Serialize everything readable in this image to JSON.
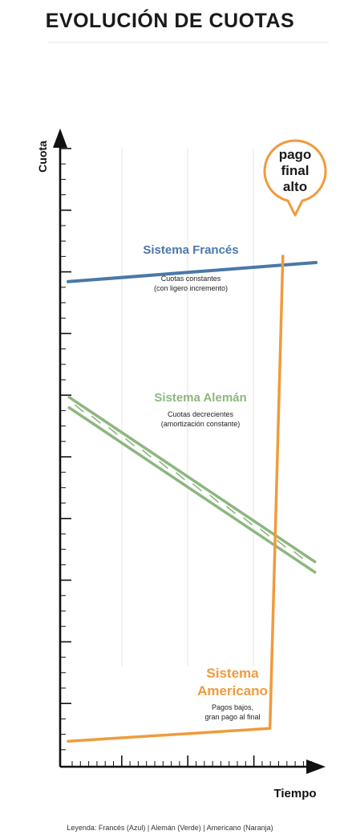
{
  "title": "EVOLUCIÓN DE CUOTAS",
  "legend_text": "Leyenda: Francés (Azul) | Alemán (Verde) | Americano (Naranja)",
  "colors": {
    "frances": "#4a78a8",
    "aleman": "#8db67f",
    "americano": "#ef9b3c",
    "axis": "#111111",
    "grid": "#e4e4e4"
  },
  "chart_data": {
    "type": "line",
    "xlabel": "Tiempo",
    "ylabel": "Cuota",
    "xlim": [
      0,
      10
    ],
    "ylim": [
      0,
      100
    ],
    "grid": true,
    "series": [
      {
        "name": "Sistema Francés",
        "color": "#4a78a8",
        "description": [
          "Cuotas constantes",
          "(con ligero incremento)"
        ],
        "points": [
          [
            0,
            76
          ],
          [
            10,
            79
          ]
        ]
      },
      {
        "name": "Sistema Alemán",
        "color": "#8db67f",
        "description": [
          "Cuotas decrecientes",
          "(amortización constante)"
        ],
        "points": [
          [
            0,
            58
          ],
          [
            10,
            32
          ]
        ]
      },
      {
        "name": "Sistema Americano",
        "color": "#ef9b3c",
        "description": [
          "Pagos bajos,",
          "gran pago al final"
        ],
        "points": [
          [
            0,
            4
          ],
          [
            8.1,
            6
          ],
          [
            8.6,
            80
          ]
        ]
      }
    ],
    "annotations": [
      {
        "text": [
          "pago",
          "final",
          "alto"
        ],
        "target_series": "Sistema Americano"
      }
    ]
  }
}
